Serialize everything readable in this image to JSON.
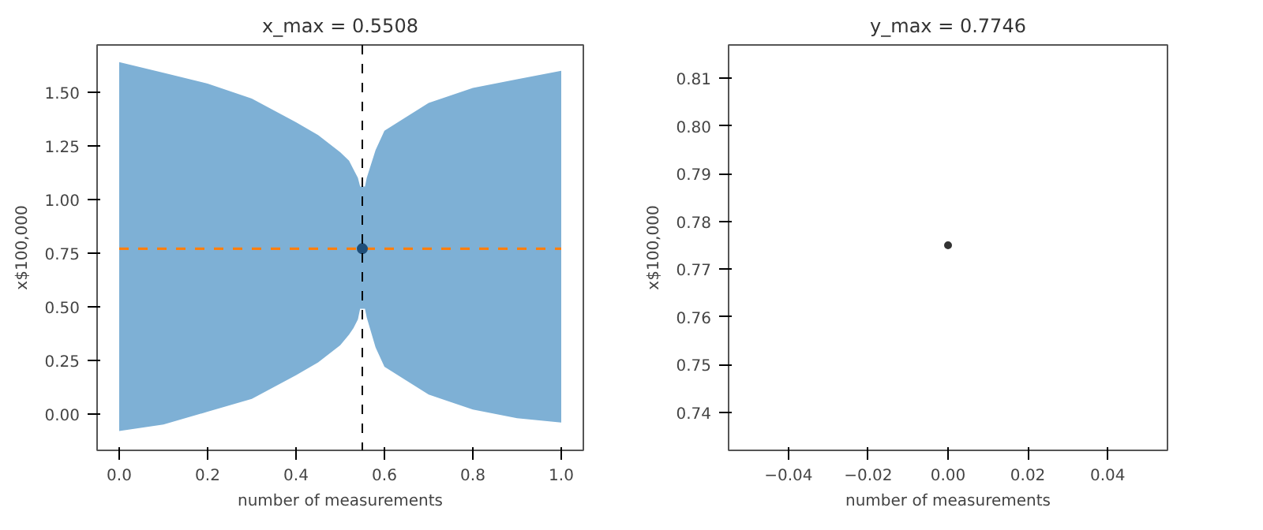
{
  "chart_data": [
    {
      "type": "line",
      "title": "x_max = 0.5508",
      "xlabel": "number of measurements",
      "ylabel": "x$100,000",
      "xlim": [
        -0.05,
        1.05
      ],
      "ylim": [
        -0.17,
        1.72
      ],
      "xticks": [
        {
          "value": 0,
          "label": "0.0"
        },
        0.2,
        0.4,
        0.6,
        0.8,
        {
          "value": 1,
          "label": "1.0"
        }
      ],
      "yticks": [
        {
          "value": 0,
          "label": "0.00"
        },
        0.25,
        {
          "value": 0.5,
          "label": "0.50"
        },
        0.75,
        {
          "value": 1,
          "label": "1.00"
        },
        1.25,
        {
          "value": 1.5,
          "label": "1.50"
        }
      ],
      "grid": false,
      "series": [
        {
          "type": "line",
          "color": "#7eb0d5",
          "x": [
            0,
            0.1,
            0.2,
            0.3,
            0.4,
            0.45,
            0.5,
            0.52,
            0.53,
            0.54,
            0.545,
            0.55,
            0.556,
            0.56,
            0.58,
            0.6,
            0.7,
            0.8,
            0.9,
            1.0
          ],
          "values": [
            null,
            null,
            null,
            null,
            null,
            null,
            null,
            null,
            null,
            null,
            null,
            null,
            null,
            null,
            null,
            null,
            null,
            null,
            null,
            null
          ],
          "lower": [
            -0.08,
            -0.05,
            0.01,
            0.07,
            0.18,
            0.24,
            0.32,
            0.37,
            0.4,
            0.44,
            0.49,
            null,
            0.49,
            0.45,
            0.31,
            0.22,
            0.09,
            0.02,
            -0.02,
            -0.04
          ],
          "upper": [
            1.64,
            1.59,
            1.54,
            1.47,
            1.36,
            1.3,
            1.22,
            1.18,
            1.14,
            1.1,
            1.06,
            null,
            1.06,
            1.1,
            1.23,
            1.32,
            1.45,
            1.52,
            1.56,
            1.6
          ]
        },
        {
          "type": "line",
          "color": "#ff7f0e",
          "line_style": "dashed",
          "x": [
            0,
            1
          ],
          "values": [
            0.77,
            0.77
          ]
        },
        {
          "type": "scatter",
          "color": "#1f4e79",
          "marker": "circle",
          "x": [
            0.55
          ],
          "values": [
            0.77
          ]
        }
      ],
      "ref_lines": [
        {
          "axis": "x",
          "value": 0.55,
          "color": "#000000",
          "line_style": "dashed"
        }
      ]
    },
    {
      "type": "scatter",
      "title": "y_max = 0.7746",
      "xlabel": "number of measurements",
      "ylabel": "x$100,000",
      "xlim": [
        -0.055,
        0.055
      ],
      "ylim": [
        0.732,
        0.817
      ],
      "xticks": [
        {
          "value": -0.04,
          "label": "−0.04"
        },
        {
          "value": -0.02,
          "label": "−0.02"
        },
        {
          "value": 0,
          "label": "0.00"
        },
        0.02,
        0.04
      ],
      "yticks": [
        0.74,
        0.75,
        0.76,
        0.77,
        0.78,
        0.79,
        {
          "value": 0.8,
          "label": "0.80"
        },
        0.81
      ],
      "grid": false,
      "marker": "circle",
      "series": [
        {
          "color": "#333333",
          "x": [
            0
          ],
          "values": [
            0.775
          ]
        }
      ]
    }
  ]
}
